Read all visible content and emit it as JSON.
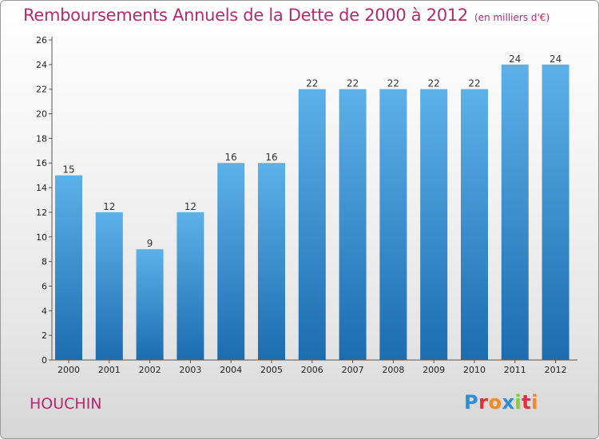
{
  "header": {
    "title": "Remboursements Annuels de la Dette de 2000 à 2012",
    "unit": "(en milliers d'€)"
  },
  "footer": {
    "commune": "HOUCHIN",
    "brand_letters": [
      "P",
      "r",
      "o",
      "x",
      "i",
      "t",
      "i"
    ],
    "brand_colors": [
      "#2f8fd2",
      "#e2303a",
      "#f08a22",
      "#2f8fd2",
      "#8cc63f",
      "#e2303a",
      "#f08a22"
    ]
  },
  "colors": {
    "bar_light": "#5aaee6",
    "bar_dark": "#1f6fb2",
    "title": "#b12b6d"
  },
  "chart_data": {
    "type": "bar",
    "title": "Remboursements Annuels de la Dette de 2000 à 2012",
    "subtitle": "(en milliers d'€)",
    "xlabel": "",
    "ylabel": "",
    "categories": [
      "2000",
      "2001",
      "2002",
      "2003",
      "2004",
      "2005",
      "2006",
      "2007",
      "2008",
      "2009",
      "2010",
      "2011",
      "2012"
    ],
    "values": [
      15,
      12,
      9,
      12,
      16,
      16,
      22,
      22,
      22,
      22,
      22,
      24,
      24
    ],
    "ylim": [
      0,
      26
    ],
    "yticks": [
      "0",
      "2",
      "4",
      "6",
      "8",
      "10",
      "12",
      "14",
      "16",
      "18",
      "20",
      "22",
      "24",
      "26"
    ],
    "grid": false,
    "legend": "none"
  }
}
